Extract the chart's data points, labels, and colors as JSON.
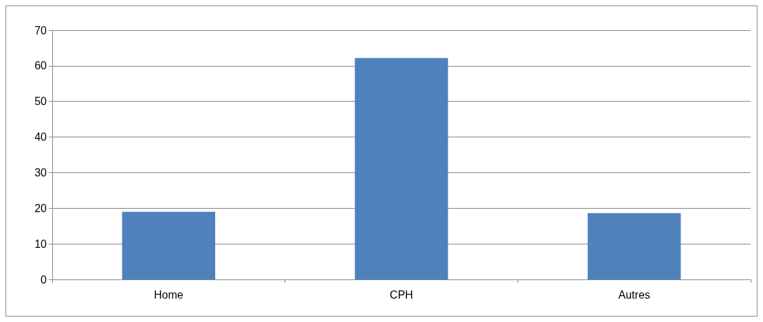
{
  "chart_data": {
    "type": "bar",
    "categories": [
      "Home",
      "CPH",
      "Autres"
    ],
    "values": [
      19.0,
      62.2,
      18.6
    ],
    "color": "#4f81bd",
    "ylim": [
      0,
      70
    ],
    "yticks": [
      0,
      10,
      20,
      30,
      40,
      50,
      60,
      70
    ],
    "grid": "y"
  }
}
